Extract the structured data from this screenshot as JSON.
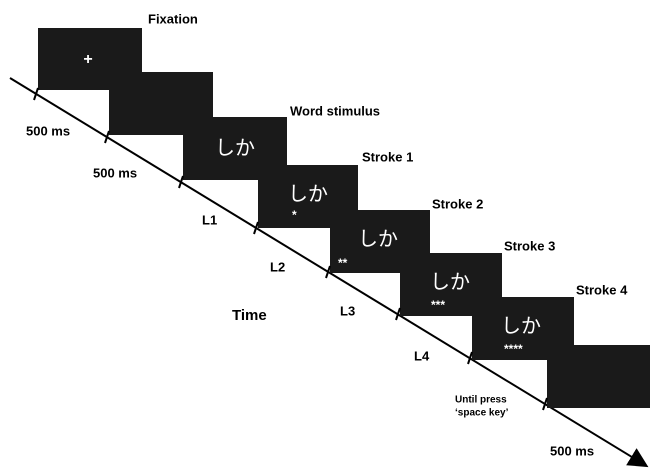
{
  "title_labels": {
    "fixation": "Fixation",
    "word_stimulus": "Word stimulus",
    "stroke_1": "Stroke 1",
    "stroke_2": "Stroke 2",
    "stroke_3": "Stroke 3",
    "stroke_4": "Stroke 4"
  },
  "screens": {
    "fixation": "+",
    "word": "しか",
    "stroke_1_word": "しか",
    "stroke_1_marks": "*",
    "stroke_2_word": "しか",
    "stroke_2_marks": "**",
    "stroke_3_word": "しか",
    "stroke_3_marks": "***",
    "stroke_4_word": "しか",
    "stroke_4_marks": "****"
  },
  "timeline": {
    "axis_label": "Time",
    "durations": [
      "500 ms",
      "500 ms",
      "L1",
      "L2",
      "L3",
      "L4",
      "Until press",
      "‘space key’",
      "500 ms"
    ]
  }
}
